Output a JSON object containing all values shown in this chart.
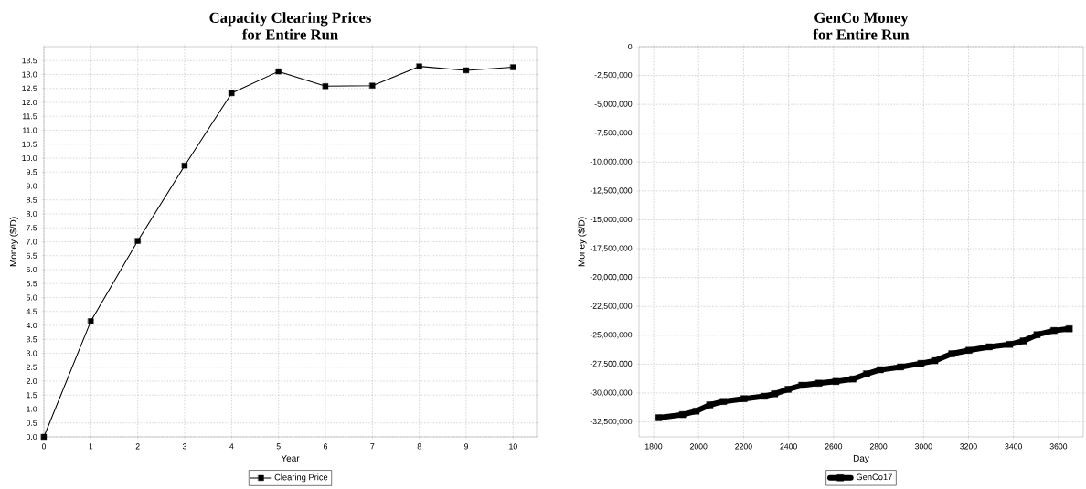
{
  "chart_data": [
    {
      "type": "line",
      "title": "Capacity Clearing Prices",
      "subtitle": "for Entire Run",
      "xlabel": "Year",
      "ylabel": "Money ($/D)",
      "x": [
        0,
        1,
        2,
        3,
        4,
        5,
        6,
        7,
        8,
        9,
        10
      ],
      "series": [
        {
          "name": "Clearing Price",
          "color": "#000000",
          "values": [
            0,
            4.15,
            7.03,
            9.73,
            12.33,
            13.11,
            12.58,
            12.6,
            13.29,
            13.15,
            13.26
          ]
        }
      ],
      "xlim": [
        0,
        10.5
      ],
      "ylim": [
        0,
        14
      ],
      "xticks": [
        0,
        1,
        2,
        3,
        4,
        5,
        6,
        7,
        8,
        9,
        10
      ],
      "yticks": [
        {
          "value": 0,
          "label": "0.0"
        },
        {
          "value": 0.5,
          "label": "0.5"
        },
        {
          "value": 1,
          "label": "1.0"
        },
        {
          "value": 1.5,
          "label": "1.5"
        },
        {
          "value": 2,
          "label": "2.0"
        },
        {
          "value": 2.5,
          "label": "2.5"
        },
        {
          "value": 3,
          "label": "3.0"
        },
        {
          "value": 3.5,
          "label": "3.5"
        },
        {
          "value": 4,
          "label": "4.0"
        },
        {
          "value": 4.5,
          "label": "4.5"
        },
        {
          "value": 5,
          "label": "5.0"
        },
        {
          "value": 5.5,
          "label": "5.5"
        },
        {
          "value": 6,
          "label": "6.0"
        },
        {
          "value": 6.5,
          "label": "6.5"
        },
        {
          "value": 7,
          "label": "7.0"
        },
        {
          "value": 7.5,
          "label": "7.5"
        },
        {
          "value": 8,
          "label": "8.0"
        },
        {
          "value": 8.5,
          "label": "8.5"
        },
        {
          "value": 9,
          "label": "9.0"
        },
        {
          "value": 9.5,
          "label": "9.5"
        },
        {
          "value": 10,
          "label": "10.0"
        },
        {
          "value": 10.5,
          "label": "10.5"
        },
        {
          "value": 11,
          "label": "11.0"
        },
        {
          "value": 11.5,
          "label": "11.5"
        },
        {
          "value": 12,
          "label": "12.0"
        },
        {
          "value": 12.5,
          "label": "12.5"
        },
        {
          "value": 13,
          "label": "13.0"
        },
        {
          "value": 13.5,
          "label": "13.5"
        }
      ],
      "grid": true,
      "legend": "bottom",
      "marker": "square",
      "line_style": "solid"
    },
    {
      "type": "line",
      "title": "GenCo Money",
      "subtitle": "for Entire Run",
      "xlabel": "Day",
      "ylabel": "Money ($/D)",
      "x": [
        1823,
        1929,
        1989,
        2050,
        2111,
        2202,
        2292,
        2338,
        2398,
        2459,
        2535,
        2611,
        2686,
        2747,
        2808,
        2898,
        2989,
        3050,
        3126,
        3202,
        3292,
        3383,
        3444,
        3505,
        3580,
        3648
      ],
      "series": [
        {
          "name": "GenCo17",
          "color": "#000000",
          "values": [
            -32140000,
            -31870000,
            -31570000,
            -31030000,
            -30730000,
            -30490000,
            -30280000,
            -30070000,
            -29680000,
            -29330000,
            -29150000,
            -29000000,
            -28790000,
            -28340000,
            -27980000,
            -27740000,
            -27440000,
            -27200000,
            -26600000,
            -26300000,
            -26000000,
            -25790000,
            -25490000,
            -24950000,
            -24590000,
            -24440000
          ]
        }
      ],
      "xlim": [
        1735,
        3710
      ],
      "ylim": [
        -33800000,
        0
      ],
      "xticks": [
        1800,
        2000,
        2200,
        2400,
        2600,
        2800,
        3000,
        3200,
        3400,
        3600
      ],
      "yticks": [
        {
          "value": -32500000,
          "label": "-32,500,000"
        },
        {
          "value": -30000000,
          "label": "-30,000,000"
        },
        {
          "value": -27500000,
          "label": "-27,500,000"
        },
        {
          "value": -25000000,
          "label": "-25,000,000"
        },
        {
          "value": -22500000,
          "label": "-22,500,000"
        },
        {
          "value": -20000000,
          "label": "-20,000,000"
        },
        {
          "value": -17500000,
          "label": "-17,500,000"
        },
        {
          "value": -15000000,
          "label": "-15,000,000"
        },
        {
          "value": -12500000,
          "label": "-12,500,000"
        },
        {
          "value": -10000000,
          "label": "-10,000,000"
        },
        {
          "value": -7500000,
          "label": "-7,500,000"
        },
        {
          "value": -5000000,
          "label": "-5,000,000"
        },
        {
          "value": -2500000,
          "label": "-2,500,000"
        },
        0
      ],
      "grid": true,
      "legend": "bottom",
      "marker": "square",
      "line_style": "solid"
    }
  ]
}
